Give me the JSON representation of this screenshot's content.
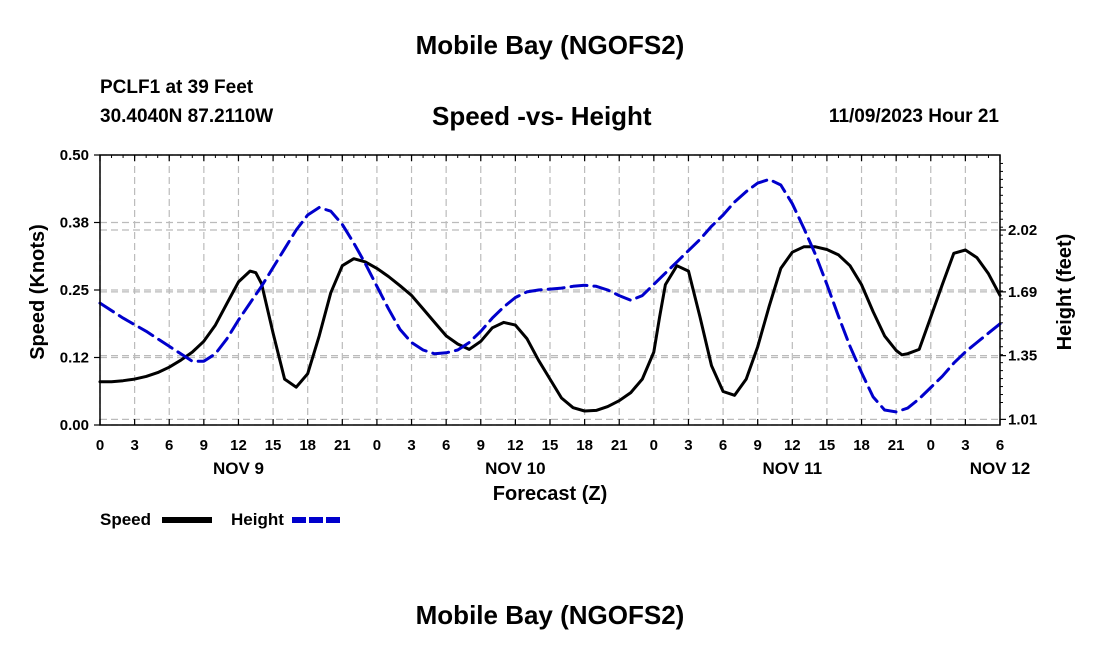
{
  "header": {
    "title": "Mobile Bay (NGOFS2)",
    "station": "PCLF1 at 39 Feet",
    "coords": "30.4040N  87.2110W",
    "subtitle": "Speed -vs- Height",
    "datetime": "11/09/2023 Hour 21"
  },
  "footer": {
    "title": "Mobile Bay (NGOFS2)"
  },
  "chart_data": {
    "type": "line",
    "xlabel": "Forecast (Z)",
    "ylabel_left": "Speed (Knots)",
    "ylabel_right": "Height (feet)",
    "x_start_hour": 0,
    "x_end_hour": 78,
    "ylim_left": [
      0,
      0.5
    ],
    "ylim_right": [
      0.98,
      2.42
    ],
    "left_ticks": [
      {
        "value": 0,
        "label": "0.00"
      },
      {
        "value": 0.125,
        "label": "0.12"
      },
      {
        "value": 0.25,
        "label": "0.25"
      },
      {
        "value": 0.375,
        "label": "0.38"
      },
      {
        "value": 0.5,
        "label": "0.50"
      }
    ],
    "right_ticks": [
      {
        "value": 1.01,
        "label": "1.01"
      },
      {
        "value": 1.35,
        "label": "1.35"
      },
      {
        "value": 1.69,
        "label": "1.69"
      },
      {
        "value": 2.02,
        "label": "2.02"
      }
    ],
    "x_ticks": [
      "0",
      "3",
      "6",
      "9",
      "12",
      "15",
      "18",
      "21",
      "0",
      "3",
      "6",
      "9",
      "12",
      "15",
      "18",
      "21",
      "0",
      "3",
      "6",
      "9",
      "12",
      "15",
      "18",
      "21",
      "0",
      "3",
      "6"
    ],
    "date_labels": [
      {
        "hour": 12,
        "label": "NOV 9"
      },
      {
        "hour": 36,
        "label": "NOV 10"
      },
      {
        "hour": 60,
        "label": "NOV 11"
      },
      {
        "hour": 78,
        "label": "NOV 12"
      }
    ],
    "grid": true,
    "legend_position": "bottom-left",
    "series": [
      {
        "name": "Speed",
        "color": "#000000",
        "style": "solid",
        "axis": "left",
        "x": [
          0,
          1,
          2,
          3,
          4,
          5,
          6,
          7,
          8,
          9,
          10,
          11,
          12,
          13,
          13.5,
          14,
          15,
          16,
          17,
          18,
          19,
          20,
          21,
          22,
          23,
          24,
          25,
          26,
          27,
          28,
          29,
          30,
          31,
          32,
          33,
          34,
          35,
          36,
          37,
          38,
          39,
          40,
          41,
          42,
          43,
          44,
          45,
          46,
          47,
          48,
          48.5,
          49,
          50,
          51,
          52,
          53,
          54,
          55,
          56,
          57,
          58,
          59,
          60,
          61,
          62,
          63,
          64,
          65,
          66,
          67,
          68,
          69,
          69.5,
          70,
          71,
          72,
          73,
          74,
          75,
          76,
          77,
          78
        ],
        "values": [
          0.08,
          0.08,
          0.082,
          0.085,
          0.09,
          0.097,
          0.107,
          0.12,
          0.135,
          0.155,
          0.185,
          0.225,
          0.265,
          0.285,
          0.282,
          0.262,
          0.17,
          0.085,
          0.07,
          0.095,
          0.165,
          0.245,
          0.295,
          0.308,
          0.302,
          0.29,
          0.275,
          0.258,
          0.24,
          0.215,
          0.19,
          0.165,
          0.15,
          0.14,
          0.155,
          0.18,
          0.19,
          0.185,
          0.16,
          0.12,
          0.085,
          0.05,
          0.032,
          0.026,
          0.027,
          0.034,
          0.045,
          0.06,
          0.085,
          0.135,
          0.2,
          0.26,
          0.295,
          0.285,
          0.2,
          0.11,
          0.062,
          0.055,
          0.085,
          0.145,
          0.22,
          0.29,
          0.32,
          0.33,
          0.33,
          0.325,
          0.315,
          0.295,
          0.26,
          0.21,
          0.165,
          0.138,
          0.13,
          0.132,
          0.14,
          0.2,
          0.26,
          0.318,
          0.324,
          0.31,
          0.28,
          0.24
        ]
      },
      {
        "name": "Height",
        "color": "#0000cc",
        "style": "dashed",
        "axis": "right",
        "x": [
          0,
          2,
          4,
          6,
          7,
          8,
          9,
          10,
          11,
          12,
          13,
          14,
          15,
          16,
          17,
          18,
          19,
          20,
          21,
          22,
          23,
          24,
          25,
          26,
          27,
          28,
          29,
          30,
          31,
          32,
          33,
          34,
          35,
          36,
          37,
          38,
          39,
          40,
          41,
          42,
          43,
          44,
          45,
          46,
          47,
          48,
          49,
          50,
          51,
          52,
          53,
          54,
          55,
          56,
          57,
          58,
          59,
          60,
          61,
          62,
          63,
          64,
          65,
          66,
          67,
          68,
          69,
          70,
          71,
          72,
          73,
          74,
          75,
          76,
          77,
          78
        ],
        "values": [
          1.63,
          1.55,
          1.48,
          1.4,
          1.36,
          1.32,
          1.32,
          1.36,
          1.44,
          1.54,
          1.63,
          1.72,
          1.82,
          1.92,
          2.02,
          2.1,
          2.14,
          2.12,
          2.05,
          1.95,
          1.84,
          1.72,
          1.6,
          1.49,
          1.42,
          1.38,
          1.36,
          1.365,
          1.38,
          1.42,
          1.48,
          1.55,
          1.61,
          1.66,
          1.69,
          1.7,
          1.705,
          1.71,
          1.72,
          1.725,
          1.72,
          1.7,
          1.67,
          1.645,
          1.67,
          1.73,
          1.79,
          1.85,
          1.91,
          1.97,
          2.04,
          2.1,
          2.17,
          2.225,
          2.27,
          2.29,
          2.26,
          2.16,
          2.03,
          1.89,
          1.73,
          1.56,
          1.4,
          1.26,
          1.13,
          1.06,
          1.05,
          1.07,
          1.12,
          1.18,
          1.24,
          1.31,
          1.37,
          1.42,
          1.47,
          1.52
        ]
      }
    ]
  }
}
